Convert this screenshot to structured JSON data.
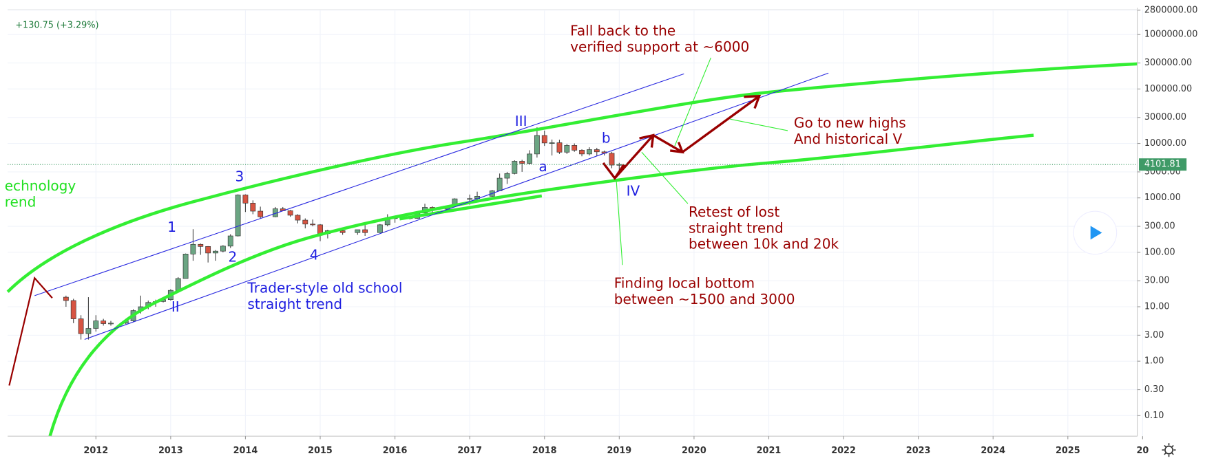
{
  "chart_data": {
    "type": "candlestick",
    "header": "+130.75 (+3.29%)",
    "log_scale": true,
    "grid": true,
    "up_color": "#6ba583",
    "down_color": "#d75442",
    "xlim": [
      2010.82,
      2025.93
    ],
    "xticks": [
      2012,
      2013,
      2014,
      2015,
      2016,
      2017,
      2018,
      2019,
      2020,
      2021,
      2022,
      2023,
      2024,
      2025,
      {
        "value": 2026,
        "label": "20"
      }
    ],
    "ylim": [
      0.042,
      2900000
    ],
    "yticks": [
      {
        "value": 2800000,
        "label": "2800000.00"
      },
      {
        "value": 1000000,
        "label": "1000000.00"
      },
      {
        "value": 300000,
        "label": "300000.00"
      },
      {
        "value": 100000,
        "label": "100000.00"
      },
      {
        "value": 30000,
        "label": "30000.00"
      },
      {
        "value": 10000,
        "label": "10000.00"
      },
      {
        "value": 3000,
        "label": "3000.00"
      },
      {
        "value": 1000,
        "label": "1000.00"
      },
      {
        "value": 300,
        "label": "300.00"
      },
      {
        "value": 100,
        "label": "100.00"
      },
      {
        "value": 30,
        "label": "30.00"
      },
      {
        "value": 10,
        "label": "10.00"
      },
      {
        "value": 3,
        "label": "3.00"
      },
      {
        "value": 1,
        "label": "1.00"
      },
      {
        "value": 0.3,
        "label": "0.30"
      },
      {
        "value": 0.1,
        "label": "0.10"
      }
    ],
    "price_line": 4101.81,
    "x": [
      2011.6,
      2011.7,
      2011.8,
      2011.9,
      2012.0,
      2012.1,
      2012.2,
      2012.4,
      2012.5,
      2012.6,
      2012.7,
      2012.8,
      2012.9,
      2013.0,
      2013.1,
      2013.2,
      2013.3,
      2013.4,
      2013.5,
      2013.6,
      2013.7,
      2013.8,
      2013.9,
      2014.0,
      2014.1,
      2014.2,
      2014.4,
      2014.5,
      2014.6,
      2014.7,
      2014.8,
      2014.9,
      2015.0,
      2015.1,
      2015.3,
      2015.5,
      2015.6,
      2015.8,
      2015.9,
      2016.0,
      2016.2,
      2016.3,
      2016.4,
      2016.5,
      2016.7,
      2016.8,
      2017.0,
      2017.1,
      2017.3,
      2017.4,
      2017.5,
      2017.6,
      2017.7,
      2017.8,
      2017.9,
      2018.0,
      2018.1,
      2018.2,
      2018.3,
      2018.4,
      2018.5,
      2018.6,
      2018.7,
      2018.8,
      2018.9,
      2019.0
    ],
    "open": [
      15,
      13,
      6,
      3.2,
      4,
      5.5,
      4.9,
      5,
      5.5,
      8.5,
      10,
      12,
      12.5,
      13.5,
      20,
      33,
      93,
      140,
      128,
      97,
      105,
      130,
      200,
      1130,
      800,
      570,
      450,
      630,
      580,
      480,
      390,
      330,
      320,
      220,
      250,
      230,
      260,
      230,
      320,
      430,
      430,
      420,
      530,
      670,
      620,
      700,
      960,
      970,
      1070,
      1350,
      2300,
      2800,
      4700,
      4300,
      6400,
      14000,
      10200,
      10300,
      6900,
      9200,
      7500,
      6400,
      7700,
      7000,
      6600,
      3971
    ],
    "high": [
      16,
      14,
      7,
      15,
      7,
      6,
      5.5,
      6,
      9,
      16,
      13,
      13.5,
      14,
      21,
      35,
      95,
      266,
      145,
      130,
      110,
      135,
      215,
      1160,
      1160,
      900,
      690,
      680,
      680,
      600,
      500,
      420,
      400,
      330,
      260,
      260,
      260,
      320,
      330,
      500,
      460,
      450,
      560,
      780,
      700,
      730,
      980,
      1150,
      1300,
      1400,
      2800,
      3000,
      4900,
      5000,
      7500,
      19800,
      17200,
      11800,
      11700,
      9800,
      10000,
      7800,
      8500,
      8300,
      7400,
      7000,
      4400
    ],
    "low": [
      10,
      5,
      2.5,
      2.5,
      3.5,
      4.5,
      4.5,
      4.8,
      5.3,
      7.5,
      9,
      10,
      12,
      13,
      20,
      33,
      70,
      90,
      65,
      70,
      100,
      120,
      195,
      550,
      500,
      420,
      440,
      570,
      450,
      340,
      275,
      300,
      160,
      180,
      210,
      210,
      200,
      230,
      300,
      350,
      400,
      415,
      520,
      480,
      600,
      700,
      750,
      900,
      1050,
      1350,
      1800,
      2700,
      3000,
      4100,
      5500,
      9000,
      6000,
      6400,
      6400,
      7000,
      5800,
      6000,
      5900,
      6000,
      3500,
      3200
    ],
    "close": [
      13,
      6,
      3.2,
      4,
      5.5,
      4.9,
      5,
      5.5,
      8.5,
      10,
      12,
      12.5,
      13.5,
      20,
      33,
      93,
      140,
      128,
      97,
      105,
      130,
      200,
      1130,
      800,
      570,
      450,
      630,
      580,
      480,
      390,
      330,
      320,
      220,
      250,
      230,
      260,
      230,
      320,
      430,
      430,
      420,
      530,
      670,
      620,
      700,
      960,
      970,
      1070,
      1350,
      2300,
      2800,
      4700,
      4300,
      6400,
      14000,
      10200,
      10300,
      6900,
      9200,
      7500,
      6400,
      7700,
      7000,
      6600,
      4000,
      4101.81
    ],
    "annotations": [
      "echnology",
      "rend",
      "3",
      "1",
      "2",
      "II",
      "4",
      "III",
      "a",
      "b",
      "IV",
      "Trader-style old school",
      "straight trend",
      "Fall back to the",
      "verified support at ~6000",
      "Go to new highs",
      "And historical V",
      "Retest of lost",
      "straight trend",
      "between 10k and 20k",
      "Finding local bottom",
      "between ~1500 and 3000"
    ]
  }
}
